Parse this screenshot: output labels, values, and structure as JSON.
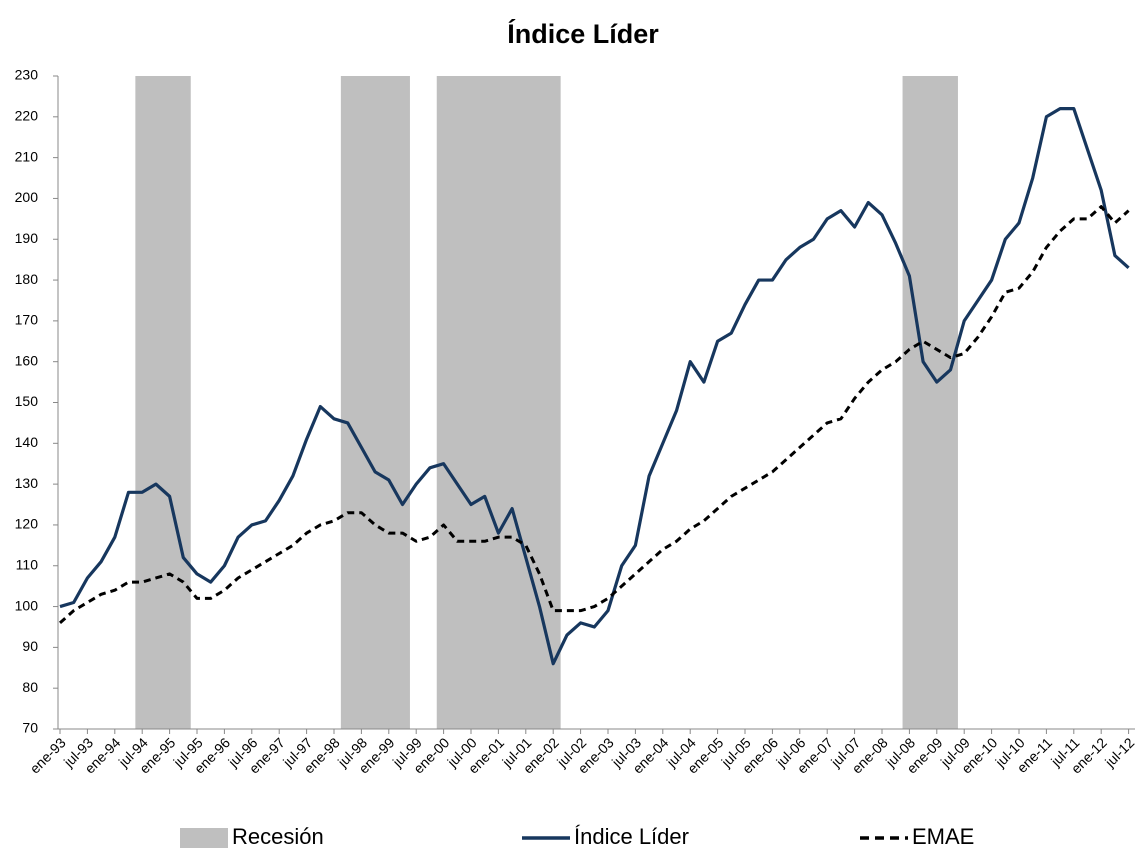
{
  "chart_data": {
    "type": "line",
    "title": "Índice Líder",
    "categories": [
      "ene-93",
      null,
      "jul-93",
      null,
      "ene-94",
      null,
      "jul-94",
      null,
      "ene-95",
      null,
      "jul-95",
      null,
      "ene-96",
      null,
      "jul-96",
      null,
      "ene-97",
      null,
      "jul-97",
      null,
      "ene-98",
      null,
      "jul-98",
      null,
      "ene-99",
      null,
      "jul-99",
      null,
      "ene-00",
      null,
      "jul-00",
      null,
      "ene-01",
      null,
      "jul-01",
      null,
      "ene-02",
      null,
      "jul-02",
      null,
      "ene-03",
      null,
      "jul-03",
      null,
      "ene-04",
      null,
      "jul-04",
      null,
      "ene-05",
      null,
      "jul-05",
      null,
      "ene-06",
      null,
      "jul-06",
      null,
      "ene-07",
      null,
      "jul-07",
      null,
      "ene-08",
      null,
      "jul-08",
      null,
      "ene-09",
      null,
      "jul-09",
      null,
      "ene-10",
      null,
      "jul-10",
      null,
      "ene-11",
      null,
      "jul-11",
      null,
      "ene-12",
      null,
      "jul-12"
    ],
    "series": [
      {
        "name": "Recesión",
        "type": "bar",
        "color": "#bfbfbf",
        "values": [
          null,
          null,
          null,
          null,
          null,
          null,
          230,
          230,
          230,
          230,
          null,
          null,
          null,
          null,
          null,
          null,
          null,
          null,
          null,
          null,
          null,
          230,
          230,
          230,
          230,
          230,
          null,
          null,
          230,
          230,
          230,
          230,
          230,
          230,
          230,
          230,
          230,
          null,
          null,
          null,
          null,
          null,
          null,
          null,
          null,
          null,
          null,
          null,
          null,
          null,
          null,
          null,
          null,
          null,
          null,
          null,
          null,
          null,
          null,
          null,
          null,
          null,
          230,
          230,
          230,
          230,
          null,
          null,
          null,
          null,
          null,
          null,
          null,
          null,
          null,
          null,
          null,
          null,
          null
        ]
      },
      {
        "name": "Índice Líder",
        "type": "line",
        "color": "#17375e",
        "dashed": false,
        "values": [
          100,
          101,
          107,
          111,
          117,
          128,
          128,
          130,
          127,
          112,
          108,
          106,
          110,
          117,
          120,
          121,
          126,
          132,
          141,
          149,
          146,
          145,
          139,
          133,
          131,
          125,
          130,
          134,
          135,
          130,
          125,
          127,
          118,
          124,
          112,
          100,
          86,
          93,
          96,
          95,
          99,
          110,
          115,
          132,
          140,
          148,
          160,
          155,
          165,
          167,
          174,
          180,
          180,
          185,
          188,
          190,
          195,
          197,
          193,
          199,
          196,
          189,
          181,
          160,
          155,
          158,
          170,
          175,
          180,
          190,
          194,
          205,
          220,
          222,
          222,
          212,
          202,
          186,
          183
        ]
      },
      {
        "name": "EMAE",
        "type": "line",
        "color": "#000000",
        "dashed": true,
        "values": [
          96,
          99,
          101,
          103,
          104,
          106,
          106,
          107,
          108,
          106,
          102,
          102,
          104,
          107,
          109,
          111,
          113,
          115,
          118,
          120,
          121,
          123,
          123,
          120,
          118,
          118,
          116,
          117,
          120,
          116,
          116,
          116,
          117,
          117,
          115,
          108,
          99,
          99,
          99,
          100,
          102,
          105,
          108,
          111,
          114,
          116,
          119,
          121,
          124,
          127,
          129,
          131,
          133,
          136,
          139,
          142,
          145,
          146,
          151,
          155,
          158,
          160,
          163,
          165,
          163,
          161,
          162,
          166,
          171,
          177,
          178,
          182,
          188,
          192,
          195,
          195,
          198,
          194,
          197
        ]
      }
    ],
    "ylim": [
      70,
      230
    ],
    "yticks": [
      70,
      80,
      90,
      100,
      110,
      120,
      130,
      140,
      150,
      160,
      170,
      180,
      190,
      200,
      210,
      220,
      230
    ],
    "grid": false,
    "legend": "bottom"
  }
}
